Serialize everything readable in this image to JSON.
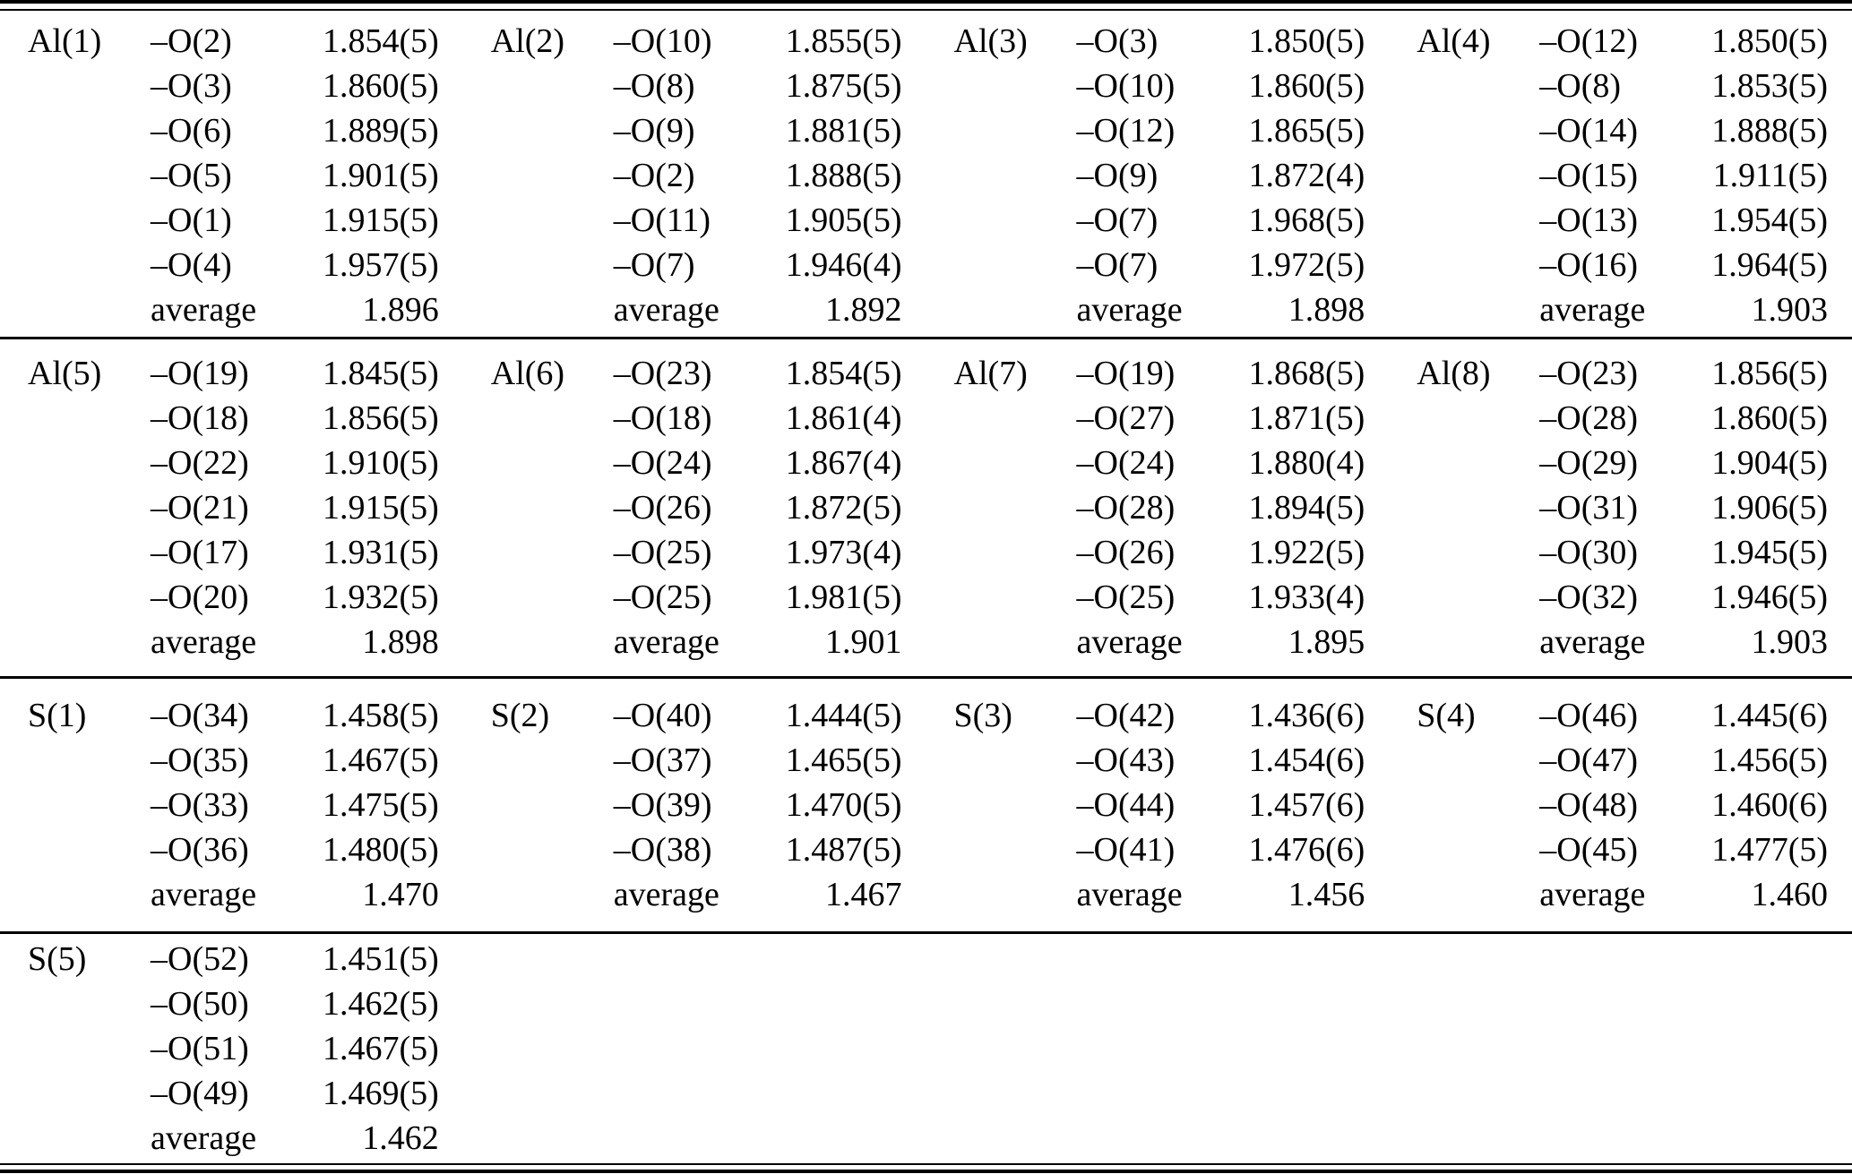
{
  "table": {
    "average_label": "average",
    "bands": [
      {
        "entries": [
          {
            "atom": "Al(1)",
            "bonds": [
              {
                "label": "–O(2)",
                "value": "1.854(5)"
              },
              {
                "label": "–O(3)",
                "value": "1.860(5)"
              },
              {
                "label": "–O(6)",
                "value": "1.889(5)"
              },
              {
                "label": "–O(5)",
                "value": "1.901(5)"
              },
              {
                "label": "–O(1)",
                "value": "1.915(5)"
              },
              {
                "label": "–O(4)",
                "value": "1.957(5)"
              }
            ],
            "average_label": "average",
            "average_value": "1.896"
          },
          {
            "atom": "Al(2)",
            "bonds": [
              {
                "label": "–O(10)",
                "value": "1.855(5)"
              },
              {
                "label": "–O(8)",
                "value": "1.875(5)"
              },
              {
                "label": "–O(9)",
                "value": "1.881(5)"
              },
              {
                "label": "–O(2)",
                "value": "1.888(5)"
              },
              {
                "label": "–O(11)",
                "value": "1.905(5)"
              },
              {
                "label": "–O(7)",
                "value": "1.946(4)"
              }
            ],
            "average_label": "average",
            "average_value": "1.892"
          },
          {
            "atom": "Al(3)",
            "bonds": [
              {
                "label": "–O(3)",
                "value": "1.850(5)"
              },
              {
                "label": "–O(10)",
                "value": "1.860(5)"
              },
              {
                "label": "–O(12)",
                "value": "1.865(5)"
              },
              {
                "label": "–O(9)",
                "value": "1.872(4)"
              },
              {
                "label": "–O(7)",
                "value": "1.968(5)"
              },
              {
                "label": "–O(7)",
                "value": "1.972(5)"
              }
            ],
            "average_label": "average",
            "average_value": "1.898"
          },
          {
            "atom": "Al(4)",
            "bonds": [
              {
                "label": "–O(12)",
                "value": "1.850(5)"
              },
              {
                "label": "–O(8)",
                "value": "1.853(5)"
              },
              {
                "label": "–O(14)",
                "value": "1.888(5)"
              },
              {
                "label": "–O(15)",
                "value": "1.911(5)"
              },
              {
                "label": "–O(13)",
                "value": "1.954(5)"
              },
              {
                "label": "–O(16)",
                "value": "1.964(5)"
              }
            ],
            "average_label": "average",
            "average_value": "1.903"
          }
        ]
      },
      {
        "entries": [
          {
            "atom": "Al(5)",
            "bonds": [
              {
                "label": "–O(19)",
                "value": "1.845(5)"
              },
              {
                "label": "–O(18)",
                "value": "1.856(5)"
              },
              {
                "label": "–O(22)",
                "value": "1.910(5)"
              },
              {
                "label": "–O(21)",
                "value": "1.915(5)"
              },
              {
                "label": "–O(17)",
                "value": "1.931(5)"
              },
              {
                "label": "–O(20)",
                "value": "1.932(5)"
              }
            ],
            "average_label": "average",
            "average_value": "1.898"
          },
          {
            "atom": "Al(6)",
            "bonds": [
              {
                "label": "–O(23)",
                "value": "1.854(5)"
              },
              {
                "label": "–O(18)",
                "value": "1.861(4)"
              },
              {
                "label": "–O(24)",
                "value": "1.867(4)"
              },
              {
                "label": "–O(26)",
                "value": "1.872(5)"
              },
              {
                "label": "–O(25)",
                "value": "1.973(4)"
              },
              {
                "label": "–O(25)",
                "value": "1.981(5)"
              }
            ],
            "average_label": "average",
            "average_value": "1.901"
          },
          {
            "atom": "Al(7)",
            "bonds": [
              {
                "label": "–O(19)",
                "value": "1.868(5)"
              },
              {
                "label": "–O(27)",
                "value": "1.871(5)"
              },
              {
                "label": "–O(24)",
                "value": "1.880(4)"
              },
              {
                "label": "–O(28)",
                "value": "1.894(5)"
              },
              {
                "label": "–O(26)",
                "value": "1.922(5)"
              },
              {
                "label": "–O(25)",
                "value": "1.933(4)"
              }
            ],
            "average_label": "average",
            "average_value": "1.895"
          },
          {
            "atom": "Al(8)",
            "bonds": [
              {
                "label": "–O(23)",
                "value": "1.856(5)"
              },
              {
                "label": "–O(28)",
                "value": "1.860(5)"
              },
              {
                "label": "–O(29)",
                "value": "1.904(5)"
              },
              {
                "label": "–O(31)",
                "value": "1.906(5)"
              },
              {
                "label": "–O(30)",
                "value": "1.945(5)"
              },
              {
                "label": "–O(32)",
                "value": "1.946(5)"
              }
            ],
            "average_label": "average",
            "average_value": "1.903"
          }
        ]
      },
      {
        "entries": [
          {
            "atom": "S(1)",
            "bonds": [
              {
                "label": "–O(34)",
                "value": "1.458(5)"
              },
              {
                "label": "–O(35)",
                "value": "1.467(5)"
              },
              {
                "label": "–O(33)",
                "value": "1.475(5)"
              },
              {
                "label": "–O(36)",
                "value": "1.480(5)"
              }
            ],
            "average_label": "average",
            "average_value": "1.470"
          },
          {
            "atom": "S(2)",
            "bonds": [
              {
                "label": "–O(40)",
                "value": "1.444(5)"
              },
              {
                "label": "–O(37)",
                "value": "1.465(5)"
              },
              {
                "label": "–O(39)",
                "value": "1.470(5)"
              },
              {
                "label": "–O(38)",
                "value": "1.487(5)"
              }
            ],
            "average_label": "average",
            "average_value": "1.467"
          },
          {
            "atom": "S(3)",
            "bonds": [
              {
                "label": "–O(42)",
                "value": "1.436(6)"
              },
              {
                "label": "–O(43)",
                "value": "1.454(6)"
              },
              {
                "label": "–O(44)",
                "value": "1.457(6)"
              },
              {
                "label": "–O(41)",
                "value": "1.476(6)"
              }
            ],
            "average_label": "average",
            "average_value": "1.456"
          },
          {
            "atom": "S(4)",
            "bonds": [
              {
                "label": "–O(46)",
                "value": "1.445(6)"
              },
              {
                "label": "–O(47)",
                "value": "1.456(5)"
              },
              {
                "label": "–O(48)",
                "value": "1.460(6)"
              },
              {
                "label": "–O(45)",
                "value": "1.477(5)"
              }
            ],
            "average_label": "average",
            "average_value": "1.460"
          }
        ]
      },
      {
        "entries": [
          {
            "atom": "S(5)",
            "bonds": [
              {
                "label": "–O(52)",
                "value": "1.451(5)"
              },
              {
                "label": "–O(50)",
                "value": "1.462(5)"
              },
              {
                "label": "–O(51)",
                "value": "1.467(5)"
              },
              {
                "label": "–O(49)",
                "value": "1.469(5)"
              }
            ],
            "average_label": "average",
            "average_value": "1.462"
          }
        ]
      }
    ]
  }
}
